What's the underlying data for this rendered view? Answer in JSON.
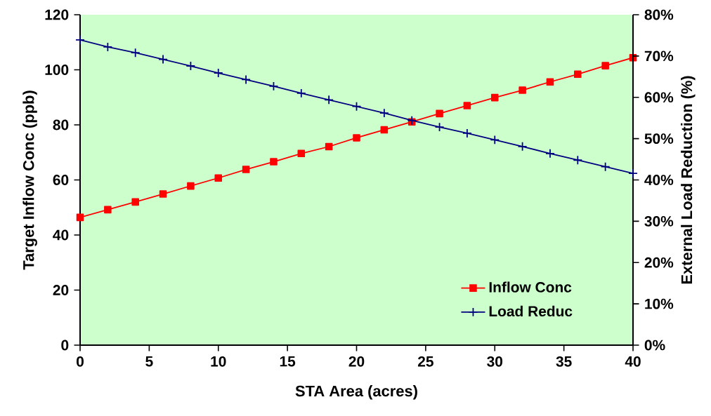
{
  "chart_data": {
    "type": "line",
    "xlabel": "STA Area (acres)",
    "ylabel": "Target Inflow Conc (ppb)",
    "y2label": "External Load Reduction (%)",
    "x": [
      0,
      2,
      4,
      6,
      8,
      10,
      12,
      14,
      16,
      18,
      20,
      22,
      24,
      26,
      28,
      30,
      32,
      34,
      36,
      38,
      40
    ],
    "series": [
      {
        "name": "Inflow Conc",
        "color": "#ff0000",
        "marker": "square",
        "values": [
          46.4,
          49.2,
          52.0,
          54.9,
          57.8,
          60.7,
          63.8,
          66.6,
          69.6,
          72.1,
          75.3,
          78.2,
          81.1,
          84.1,
          87.0,
          89.9,
          92.6,
          95.6,
          98.4,
          101.5,
          104.4
        ]
      },
      {
        "name": "Load Reduc",
        "color": "#000080",
        "marker": "cross",
        "axis": "y2",
        "values": [
          73.9,
          72.2,
          70.8,
          69.2,
          67.6,
          65.9,
          64.3,
          62.7,
          61.0,
          59.4,
          57.8,
          56.2,
          54.4,
          52.8,
          51.3,
          49.7,
          48.1,
          46.4,
          44.8,
          43.2,
          41.6
        ]
      }
    ],
    "xlim": [
      0,
      40
    ],
    "xticks": [
      0,
      5,
      10,
      15,
      20,
      25,
      30,
      35,
      40
    ],
    "ylim": [
      0,
      120
    ],
    "yticks": [
      0,
      20,
      40,
      60,
      80,
      100,
      120
    ],
    "y2lim": [
      0,
      80
    ],
    "y2ticks": [
      {
        "value": 0,
        "label": "0%"
      },
      {
        "value": 10,
        "label": "10%"
      },
      {
        "value": 20,
        "label": "20%"
      },
      {
        "value": 30,
        "label": "30%"
      },
      {
        "value": 40,
        "label": "40%"
      },
      {
        "value": 50,
        "label": "50%"
      },
      {
        "value": 60,
        "label": "60%"
      },
      {
        "value": 70,
        "label": "70%"
      },
      {
        "value": 80,
        "label": "80%"
      }
    ],
    "legend": "bottom right",
    "line_style": "solid"
  }
}
